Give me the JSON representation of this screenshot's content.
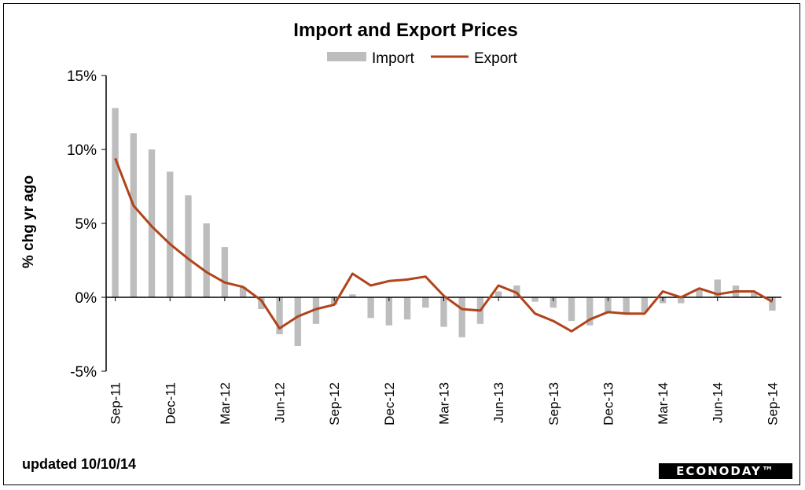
{
  "chart_data": {
    "type": "bar+line",
    "title": "Import and Export Prices",
    "ylabel": "% chg yr ago",
    "xlabel": "",
    "ylim": [
      -5,
      15
    ],
    "yticks": [
      15,
      10,
      5,
      0,
      -5
    ],
    "ytick_labels": [
      "15%",
      "10%",
      "5%",
      "0%",
      "-5%"
    ],
    "legend": {
      "position": "top-center",
      "entries": [
        "Import",
        "Export"
      ]
    },
    "categories": [
      "Sep-11",
      "Oct-11",
      "Nov-11",
      "Dec-11",
      "Jan-12",
      "Feb-12",
      "Mar-12",
      "Apr-12",
      "May-12",
      "Jun-12",
      "Jul-12",
      "Aug-12",
      "Sep-12",
      "Oct-12",
      "Nov-12",
      "Dec-12",
      "Jan-13",
      "Feb-13",
      "Mar-13",
      "Apr-13",
      "May-13",
      "Jun-13",
      "Jul-13",
      "Aug-13",
      "Sep-13",
      "Oct-13",
      "Nov-13",
      "Dec-13",
      "Jan-14",
      "Feb-14",
      "Mar-14",
      "Apr-14",
      "May-14",
      "Jun-14",
      "Jul-14",
      "Aug-14",
      "Sep-14"
    ],
    "tick_labels": [
      "Sep-11",
      "Dec-11",
      "Mar-12",
      "Jun-12",
      "Sep-12",
      "Dec-12",
      "Mar-13",
      "Jun-13",
      "Sep-13",
      "Dec-13",
      "Mar-14",
      "Jun-14",
      "Sep-14"
    ],
    "series": [
      {
        "name": "Import",
        "kind": "bar",
        "color": "#bdbdbd",
        "values": [
          12.8,
          11.1,
          10.0,
          8.5,
          6.9,
          5.0,
          3.4,
          0.7,
          -0.8,
          -2.5,
          -3.3,
          -1.8,
          -0.5,
          0.2,
          -1.4,
          -1.9,
          -1.5,
          -0.7,
          -2.0,
          -2.7,
          -1.8,
          0.4,
          0.8,
          -0.3,
          -0.7,
          -1.6,
          -1.9,
          -1.1,
          -1.1,
          -1.0,
          -0.4,
          -0.4,
          0.5,
          1.2,
          0.8,
          0.3,
          -0.9
        ]
      },
      {
        "name": "Export",
        "kind": "line",
        "color": "#b0441a",
        "values": [
          9.4,
          6.2,
          4.8,
          3.6,
          2.6,
          1.7,
          1.0,
          0.7,
          -0.2,
          -2.1,
          -1.3,
          -0.8,
          -0.5,
          1.6,
          0.8,
          1.1,
          1.2,
          1.4,
          0.1,
          -0.8,
          -0.9,
          0.8,
          0.3,
          -1.1,
          -1.6,
          -2.3,
          -1.5,
          -1.0,
          -1.1,
          -1.1,
          0.4,
          0.0,
          0.6,
          0.2,
          0.4,
          0.4,
          -0.3
        ]
      }
    ],
    "grid": false
  },
  "footer": {
    "updated": "updated 10/10/14",
    "logo": "ECONODAY™"
  }
}
